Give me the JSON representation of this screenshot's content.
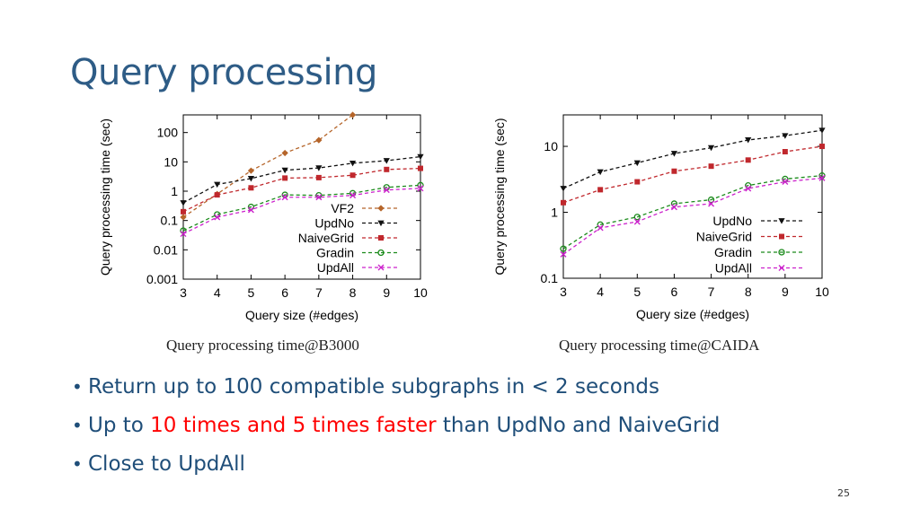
{
  "slide": {
    "title": "Query processing",
    "page_number": "25"
  },
  "bullets": [
    {
      "text": "Return up to 100 compatible subgraphs in < 2 seconds"
    },
    {
      "pre": "Up to ",
      "highlight": "10 times and 5 times faster",
      "post": " than UpdNo and NaiveGrid"
    },
    {
      "text": "Close to UpdAll"
    }
  ],
  "colors": {
    "title": "#2e5c86",
    "bullet_text": "#1f4e79",
    "highlight": "#ff0000"
  },
  "chart_data": [
    {
      "type": "line",
      "caption": "Query processing time@B3000",
      "xlabel": "Query size (#edges)",
      "ylabel": "Query processing time (sec)",
      "yscale": "log",
      "xlim": [
        3,
        10
      ],
      "ylim": [
        0.001,
        400
      ],
      "xticks": [
        3,
        4,
        5,
        6,
        7,
        8,
        9,
        10
      ],
      "yticks": [
        {
          "v": 0.001,
          "label": "0.001"
        },
        {
          "v": 0.01,
          "label": "0.01"
        },
        {
          "v": 0.1,
          "label": "0.1"
        },
        {
          "v": 1,
          "label": "1"
        },
        {
          "v": 10,
          "label": "10"
        },
        {
          "v": 100,
          "label": "100"
        }
      ],
      "legend_position": "bottom-right",
      "series": [
        {
          "name": "VF2",
          "color": "#b5652a",
          "marker": "diamond",
          "x": [
            3,
            4,
            5,
            6,
            7,
            8
          ],
          "y": [
            0.13,
            0.8,
            5,
            20,
            55,
            400
          ]
        },
        {
          "name": "UpdNo",
          "color": "#111111",
          "marker": "triangle-down",
          "x": [
            3,
            4,
            5,
            6,
            7,
            8,
            9,
            10
          ],
          "y": [
            0.4,
            1.7,
            2.7,
            5.2,
            6.2,
            9,
            11,
            15
          ]
        },
        {
          "name": "NaiveGrid",
          "color": "#c0282d",
          "marker": "square",
          "x": [
            3,
            4,
            5,
            6,
            7,
            8,
            9,
            10
          ],
          "y": [
            0.2,
            0.75,
            1.3,
            2.8,
            2.9,
            3.5,
            5.5,
            6
          ]
        },
        {
          "name": "Gradin",
          "color": "#1a8a1a",
          "marker": "circle",
          "x": [
            3,
            4,
            5,
            6,
            7,
            8,
            9,
            10
          ],
          "y": [
            0.045,
            0.16,
            0.29,
            0.75,
            0.72,
            0.85,
            1.35,
            1.6
          ]
        },
        {
          "name": "UpdAll",
          "color": "#cc22cc",
          "marker": "x",
          "x": [
            3,
            4,
            5,
            6,
            7,
            8,
            9,
            10
          ],
          "y": [
            0.035,
            0.13,
            0.23,
            0.62,
            0.62,
            0.72,
            1.1,
            1.25
          ]
        }
      ]
    },
    {
      "type": "line",
      "caption": "Query processing time@CAIDA",
      "xlabel": "Query size (#edges)",
      "ylabel": "Query processing time (sec)",
      "yscale": "log",
      "xlim": [
        3,
        10
      ],
      "ylim": [
        0.1,
        30
      ],
      "xticks": [
        3,
        4,
        5,
        6,
        7,
        8,
        9,
        10
      ],
      "yticks": [
        {
          "v": 0.1,
          "label": "0.1"
        },
        {
          "v": 1,
          "label": "1"
        },
        {
          "v": 10,
          "label": "10"
        }
      ],
      "legend_position": "bottom-right",
      "series": [
        {
          "name": "UpdNo",
          "color": "#111111",
          "marker": "triangle-down",
          "x": [
            3,
            4,
            5,
            6,
            7,
            8,
            9,
            10
          ],
          "y": [
            2.3,
            4.1,
            5.6,
            7.8,
            9.5,
            12.5,
            14.5,
            17.5
          ]
        },
        {
          "name": "NaiveGrid",
          "color": "#c0282d",
          "marker": "square",
          "x": [
            3,
            4,
            5,
            6,
            7,
            8,
            9,
            10
          ],
          "y": [
            1.4,
            2.2,
            2.9,
            4.2,
            5,
            6.2,
            8.3,
            10
          ]
        },
        {
          "name": "Gradin",
          "color": "#1a8a1a",
          "marker": "circle",
          "x": [
            3,
            4,
            5,
            6,
            7,
            8,
            9,
            10
          ],
          "y": [
            0.28,
            0.65,
            0.85,
            1.35,
            1.55,
            2.55,
            3.2,
            3.6
          ]
        },
        {
          "name": "UpdAll",
          "color": "#cc22cc",
          "marker": "x",
          "x": [
            3,
            4,
            5,
            6,
            7,
            8,
            9,
            10
          ],
          "y": [
            0.23,
            0.58,
            0.72,
            1.2,
            1.35,
            2.3,
            2.9,
            3.3
          ]
        }
      ]
    }
  ]
}
